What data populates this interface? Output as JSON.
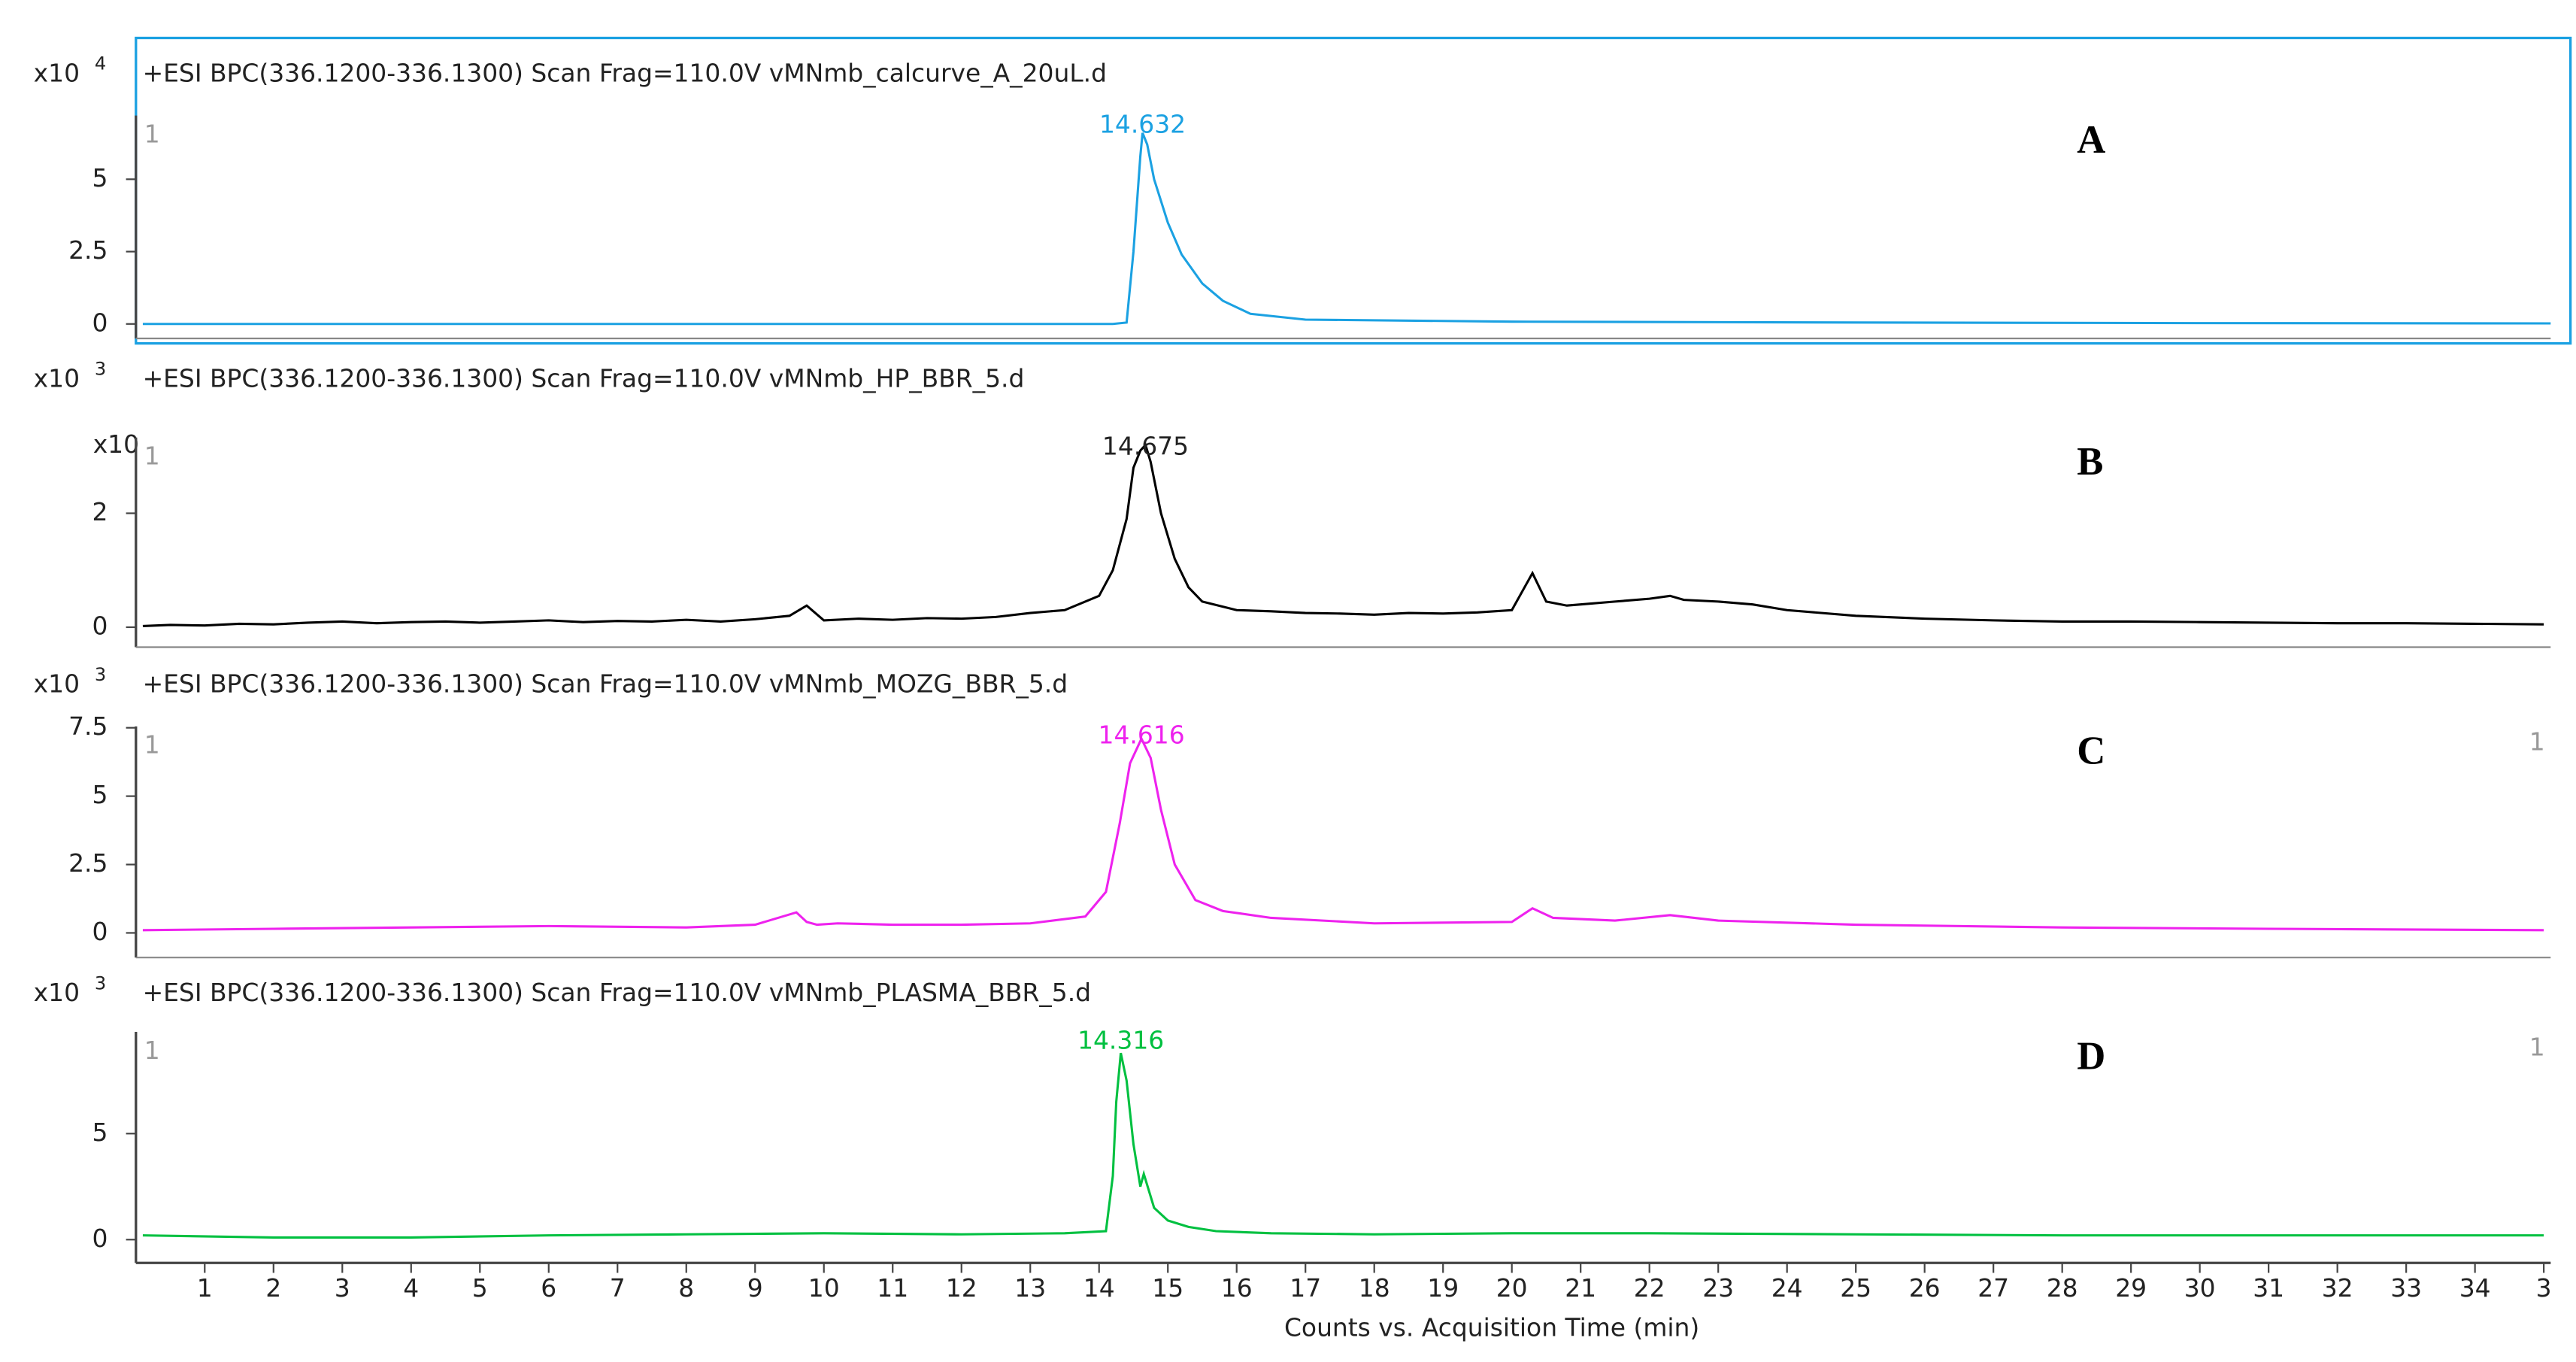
{
  "chart_data": [
    {
      "type": "line",
      "header": "+ESI BPC(336.1200-336.1300) Scan Frag=110.0V vMNmb_calcurve_A_20uL.d",
      "y_scale_label": "x10",
      "y_exponent": 4,
      "panel_label": "A",
      "peak_label": 14.632,
      "left_marker": "1",
      "color": "#1ba1e2",
      "selected": true,
      "xlim": [
        0,
        35.1
      ],
      "ylim": [
        -0.5,
        7.2
      ],
      "yticks": [
        0,
        2.5,
        5
      ],
      "x": [
        0.1,
        5,
        10,
        14.2,
        14.4,
        14.5,
        14.6,
        14.632,
        14.7,
        14.8,
        15.0,
        15.2,
        15.5,
        15.8,
        16.2,
        17,
        20,
        25,
        30,
        35.1
      ],
      "values": [
        0,
        0,
        0,
        0,
        0.05,
        2.5,
        5.8,
        6.6,
        6.2,
        5.0,
        3.5,
        2.4,
        1.4,
        0.8,
        0.35,
        0.15,
        0.08,
        0.05,
        0.03,
        0.02
      ]
    },
    {
      "type": "line",
      "header": "+ESI BPC(336.1200-336.1300) Scan Frag=110.0V vMNmb_HP_BBR_5.d",
      "y_scale_label": "x10",
      "y_exponent": 3,
      "overlay_text": "x10",
      "panel_label": "B",
      "peak_label": 14.675,
      "left_marker": "1",
      "color": "#000000",
      "selected": false,
      "xlim": [
        0,
        35.1
      ],
      "ylim": [
        -0.35,
        3.33
      ],
      "yticks": [
        0,
        2
      ],
      "x": [
        0.1,
        0.5,
        1,
        1.5,
        2,
        2.5,
        3,
        3.5,
        4,
        4.5,
        5,
        5.5,
        6,
        6.5,
        7,
        7.5,
        8,
        8.5,
        9,
        9.5,
        9.75,
        10,
        10.5,
        11,
        11.5,
        12,
        12.5,
        13,
        13.5,
        14,
        14.2,
        14.4,
        14.5,
        14.6,
        14.675,
        14.75,
        14.9,
        15.1,
        15.3,
        15.5,
        16,
        16.5,
        17,
        17.5,
        18,
        18.5,
        19,
        19.5,
        20,
        20.3,
        20.5,
        20.8,
        21,
        21.5,
        22,
        22.3,
        22.5,
        23,
        23.5,
        24,
        25,
        26,
        27,
        28,
        29,
        30,
        31,
        32,
        33,
        34,
        35
      ],
      "values": [
        0.02,
        0.04,
        0.03,
        0.06,
        0.05,
        0.08,
        0.1,
        0.07,
        0.09,
        0.1,
        0.08,
        0.1,
        0.12,
        0.09,
        0.11,
        0.1,
        0.13,
        0.1,
        0.14,
        0.2,
        0.38,
        0.12,
        0.15,
        0.13,
        0.16,
        0.15,
        0.18,
        0.25,
        0.3,
        0.55,
        1.0,
        1.9,
        2.8,
        3.1,
        3.2,
        2.9,
        2.0,
        1.2,
        0.7,
        0.45,
        0.3,
        0.28,
        0.25,
        0.24,
        0.22,
        0.25,
        0.24,
        0.26,
        0.3,
        0.95,
        0.45,
        0.38,
        0.4,
        0.45,
        0.5,
        0.55,
        0.48,
        0.45,
        0.4,
        0.3,
        0.2,
        0.15,
        0.12,
        0.1,
        0.1,
        0.09,
        0.08,
        0.07,
        0.07,
        0.06,
        0.05
      ]
    },
    {
      "type": "line",
      "header": "+ESI BPC(336.1200-336.1300) Scan Frag=110.0V vMNmb_MOZG_BBR_5.d",
      "y_scale_label": "x10",
      "y_exponent": 3,
      "panel_label": "C",
      "peak_label": 14.616,
      "left_marker": "1",
      "right_marker": "1",
      "color": "#ee22ee",
      "selected": false,
      "xlim": [
        0,
        35.1
      ],
      "ylim": [
        -0.9,
        7.55
      ],
      "yticks": [
        0,
        2.5,
        5,
        7.5
      ],
      "x": [
        0.1,
        2,
        4,
        6,
        8,
        9,
        9.6,
        9.75,
        9.9,
        10.2,
        11,
        12,
        13,
        13.8,
        14.1,
        14.3,
        14.45,
        14.616,
        14.75,
        14.9,
        15.1,
        15.4,
        15.8,
        16.5,
        18,
        20,
        20.3,
        20.6,
        21.5,
        22.3,
        23,
        25,
        28,
        31,
        35
      ],
      "values": [
        0.1,
        0.15,
        0.2,
        0.25,
        0.2,
        0.3,
        0.75,
        0.4,
        0.3,
        0.35,
        0.3,
        0.3,
        0.35,
        0.6,
        1.5,
        4,
        6.2,
        7.1,
        6.4,
        4.5,
        2.5,
        1.2,
        0.8,
        0.55,
        0.35,
        0.4,
        0.9,
        0.55,
        0.45,
        0.65,
        0.45,
        0.3,
        0.2,
        0.15,
        0.1
      ]
    },
    {
      "type": "line",
      "header": "+ESI BPC(336.1200-336.1300) Scan Frag=110.0V vMNmb_PLASMA_BBR_5.d",
      "y_scale_label": "x10",
      "y_exponent": 3,
      "panel_label": "D",
      "peak_label": 14.316,
      "left_marker": "1",
      "right_marker": "1",
      "color": "#00c040",
      "selected": false,
      "xlim": [
        0,
        35.1
      ],
      "ylim": [
        -1.1,
        9.8
      ],
      "yticks": [
        0,
        5
      ],
      "xlabel": "Counts vs. Acquisition Time (min)",
      "xticks": [
        1,
        2,
        3,
        4,
        5,
        6,
        7,
        8,
        9,
        10,
        11,
        12,
        13,
        14,
        15,
        16,
        17,
        18,
        19,
        20,
        21,
        22,
        23,
        24,
        25,
        26,
        27,
        28,
        29,
        30,
        31,
        32,
        33,
        34,
        {
          "value": 35,
          "label": "3"
        }
      ],
      "x": [
        0.1,
        2,
        4,
        6,
        8,
        10,
        12,
        13.5,
        14.1,
        14.2,
        14.25,
        14.316,
        14.4,
        14.5,
        14.6,
        14.65,
        14.8,
        15,
        15.3,
        15.7,
        16.5,
        18,
        20,
        22,
        25,
        28,
        31,
        35
      ],
      "values": [
        0.2,
        0.1,
        0.1,
        0.2,
        0.25,
        0.3,
        0.25,
        0.3,
        0.4,
        3,
        6.5,
        8.8,
        7.5,
        4.5,
        2.5,
        3.1,
        1.5,
        0.9,
        0.6,
        0.4,
        0.3,
        0.25,
        0.3,
        0.3,
        0.25,
        0.2,
        0.2,
        0.2
      ]
    }
  ]
}
